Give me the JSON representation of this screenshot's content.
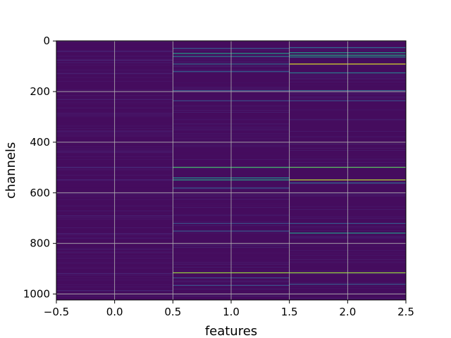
{
  "chart_data": {
    "type": "heatmap",
    "title": "",
    "xlabel": "features",
    "ylabel": "channels",
    "xlim": [
      -0.5,
      2.5
    ],
    "ylim": [
      1023.5,
      -0.5
    ],
    "x_ticks": [
      -0.5,
      0.0,
      0.5,
      1.0,
      1.5,
      2.0,
      2.5
    ],
    "x_tick_labels": [
      "−0.5",
      "0.0",
      "0.5",
      "1.0",
      "1.5",
      "2.0",
      "2.5"
    ],
    "y_ticks": [
      0,
      200,
      400,
      600,
      800,
      1000
    ],
    "y_tick_labels": [
      "0",
      "200",
      "400",
      "600",
      "800",
      "1000"
    ],
    "grid": true,
    "colormap": "viridis",
    "n_rows": 1024,
    "n_cols": 3,
    "background_value": 0.04,
    "columns": [
      {
        "feature": 0,
        "highlights": [
          {
            "channel": 40,
            "value": 0.14
          },
          {
            "channel": 75,
            "value": 0.13
          },
          {
            "channel": 128,
            "value": 0.12
          },
          {
            "channel": 230,
            "value": 0.12
          },
          {
            "channel": 355,
            "value": 0.11
          },
          {
            "channel": 498,
            "value": 0.15
          },
          {
            "channel": 548,
            "value": 0.14
          },
          {
            "channel": 690,
            "value": 0.12
          },
          {
            "channel": 760,
            "value": 0.12
          },
          {
            "channel": 918,
            "value": 0.13
          },
          {
            "channel": 985,
            "value": 0.13
          }
        ]
      },
      {
        "feature": 1,
        "highlights": [
          {
            "channel": 28,
            "value": 0.35
          },
          {
            "channel": 48,
            "value": 0.55
          },
          {
            "channel": 60,
            "value": 0.45
          },
          {
            "channel": 90,
            "value": 0.4
          },
          {
            "channel": 120,
            "value": 0.38
          },
          {
            "channel": 195,
            "value": 0.35
          },
          {
            "channel": 235,
            "value": 0.3
          },
          {
            "channel": 498,
            "value": 0.7
          },
          {
            "channel": 540,
            "value": 0.5
          },
          {
            "channel": 548,
            "value": 0.6
          },
          {
            "channel": 580,
            "value": 0.35
          },
          {
            "channel": 720,
            "value": 0.3
          },
          {
            "channel": 750,
            "value": 0.35
          },
          {
            "channel": 915,
            "value": 0.85
          },
          {
            "channel": 935,
            "value": 0.3
          },
          {
            "channel": 965,
            "value": 0.3
          }
        ]
      },
      {
        "feature": 2,
        "highlights": [
          {
            "channel": 25,
            "value": 0.4
          },
          {
            "channel": 45,
            "value": 0.55
          },
          {
            "channel": 55,
            "value": 0.6
          },
          {
            "channel": 62,
            "value": 0.5
          },
          {
            "channel": 90,
            "value": 0.95
          },
          {
            "channel": 125,
            "value": 0.45
          },
          {
            "channel": 195,
            "value": 0.4
          },
          {
            "channel": 235,
            "value": 0.3
          },
          {
            "channel": 498,
            "value": 0.75
          },
          {
            "channel": 548,
            "value": 0.9
          },
          {
            "channel": 560,
            "value": 0.4
          },
          {
            "channel": 720,
            "value": 0.35
          },
          {
            "channel": 758,
            "value": 0.55
          },
          {
            "channel": 915,
            "value": 0.85
          },
          {
            "channel": 960,
            "value": 0.35
          }
        ]
      }
    ]
  }
}
